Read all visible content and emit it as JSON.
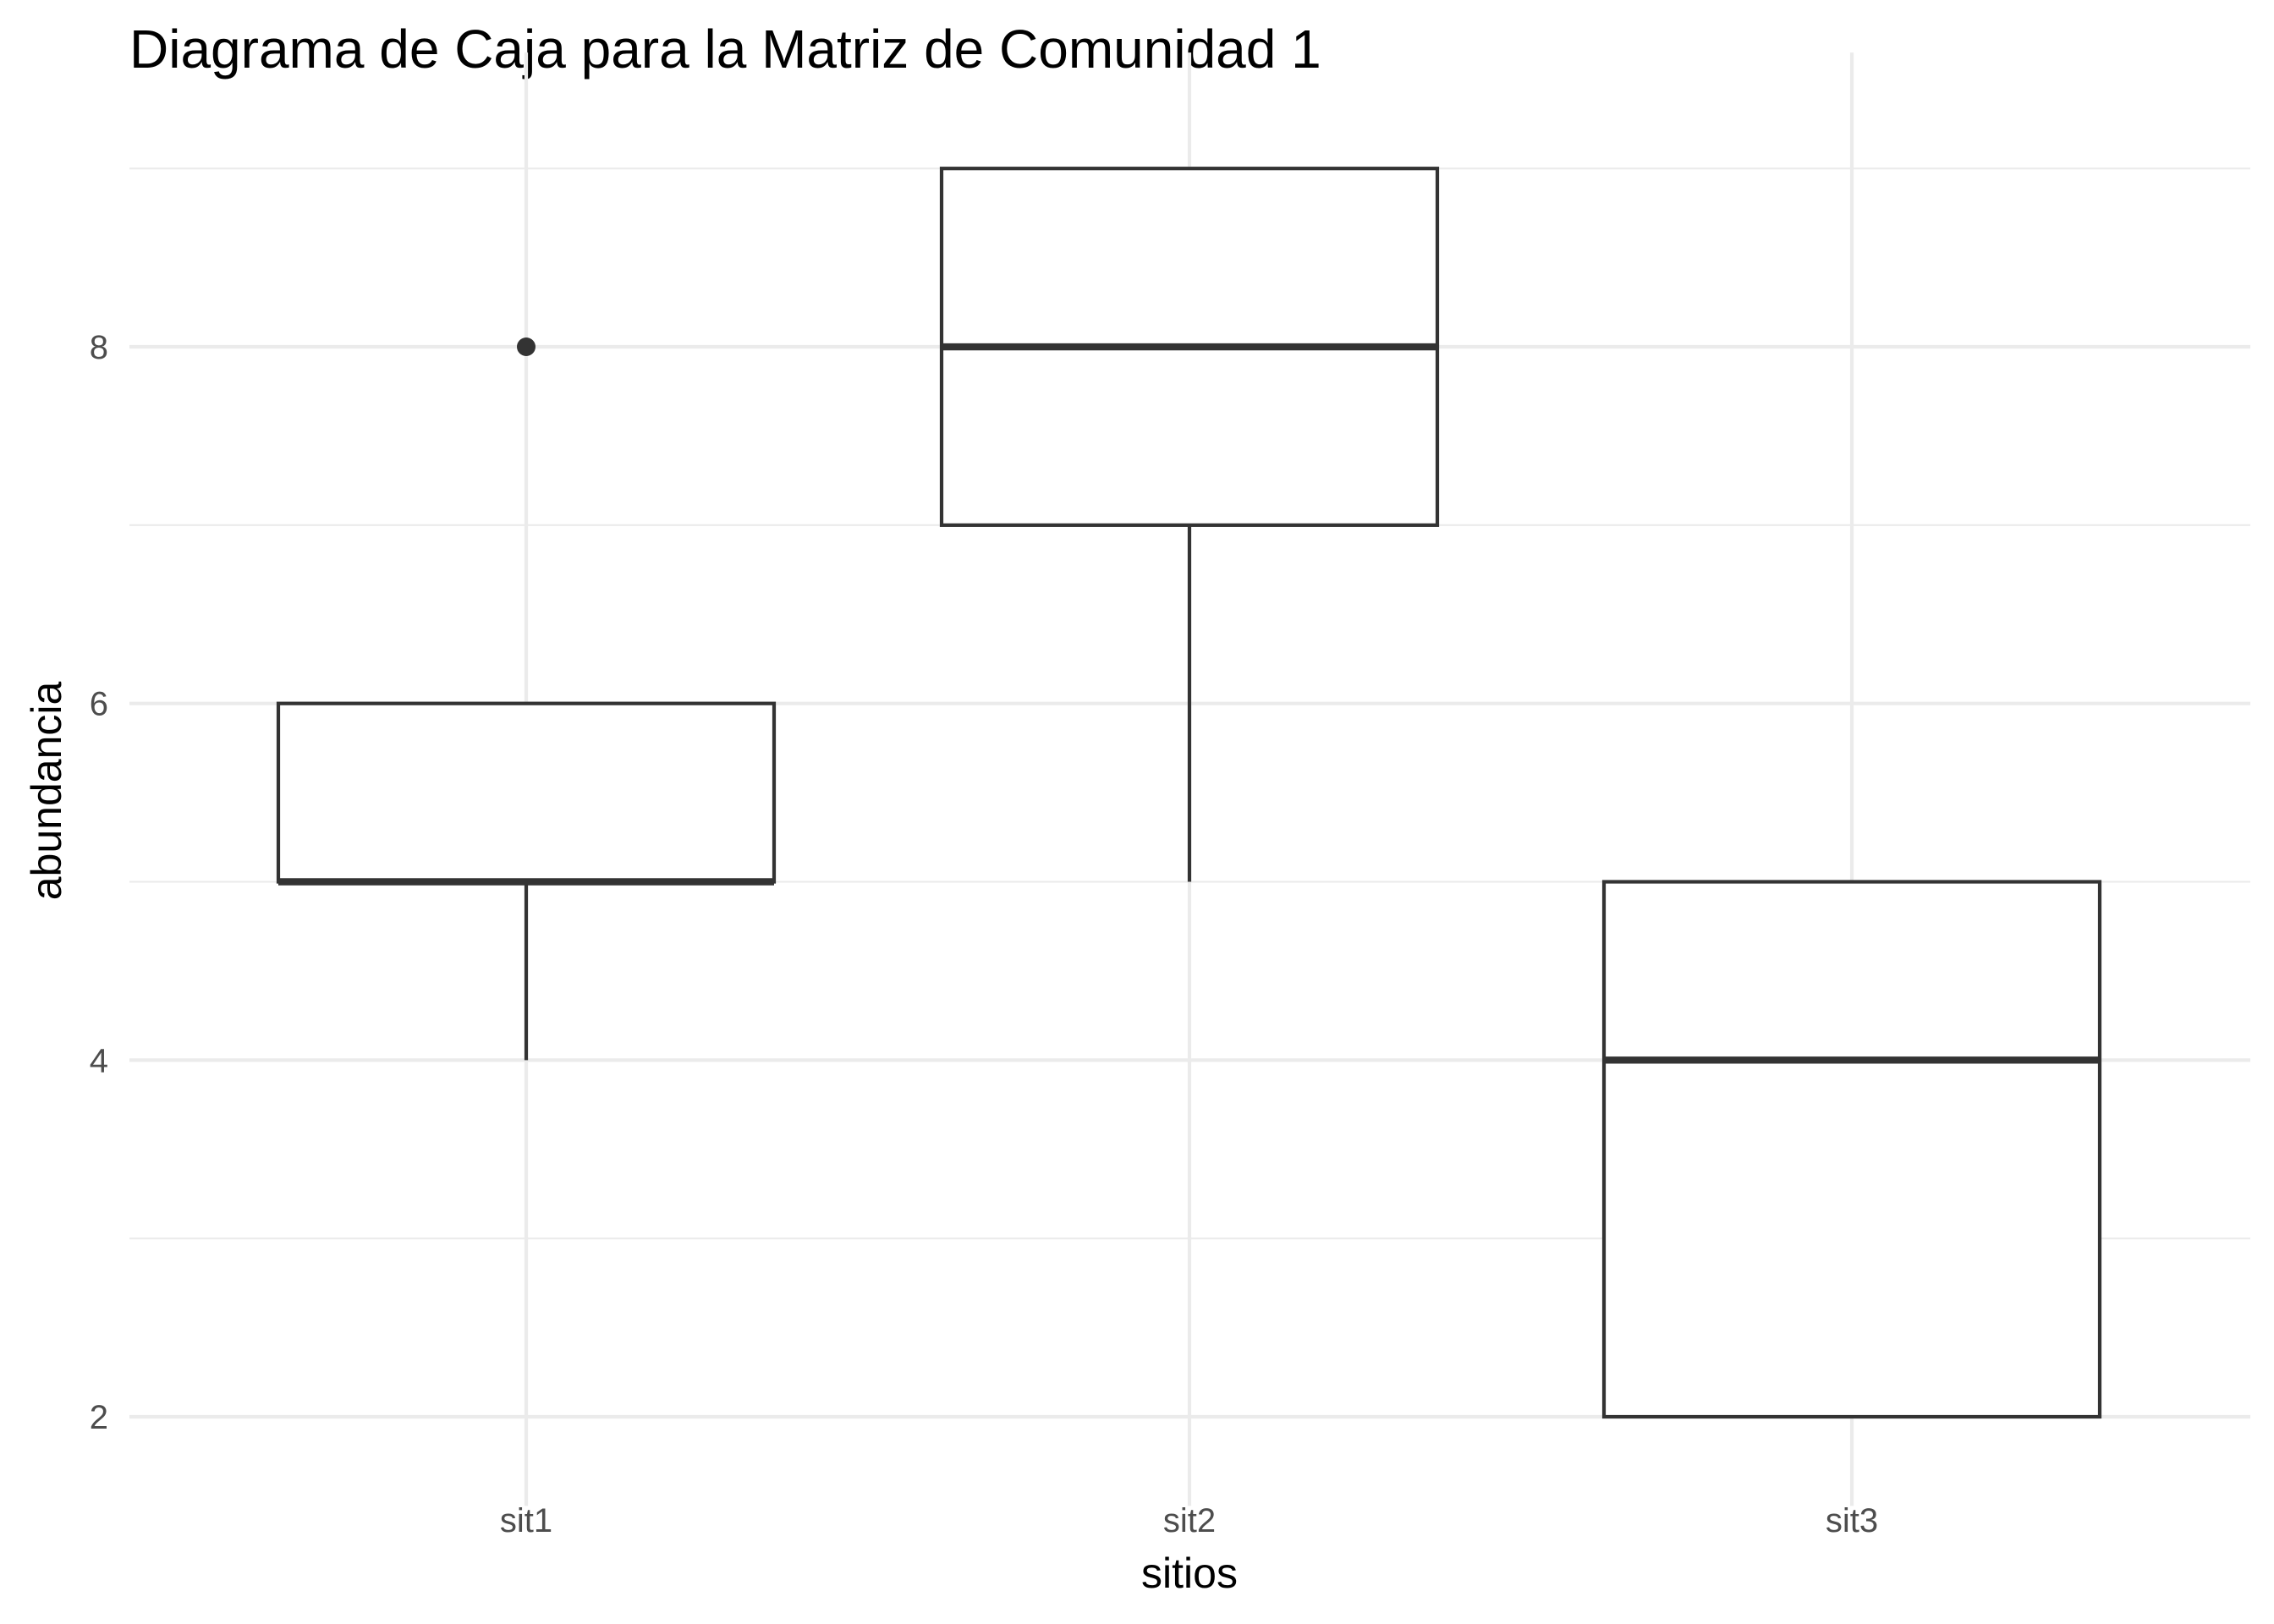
{
  "chart_data": {
    "type": "box",
    "title": "Diagrama de Caja para la Matriz de Comunidad 1",
    "xlabel": "sitios",
    "ylabel": "abundancia",
    "categories": [
      "sit1",
      "sit2",
      "sit3"
    ],
    "y_ticks": [
      2,
      4,
      6,
      8
    ],
    "y_minor_ticks": [
      3,
      5,
      7,
      9
    ],
    "ylim": [
      1.5,
      9.65
    ],
    "grid": true,
    "legend": "none",
    "boxes": [
      {
        "category": "sit1",
        "min": 4,
        "q1": 5,
        "median": 5,
        "q3": 6,
        "max": 6,
        "outliers": [
          8
        ]
      },
      {
        "category": "sit2",
        "min": 5,
        "q1": 7,
        "median": 8,
        "q3": 9,
        "max": 9,
        "outliers": []
      },
      {
        "category": "sit3",
        "min": 2,
        "q1": 2,
        "median": 4,
        "q3": 5,
        "max": 5,
        "outliers": []
      }
    ],
    "colors": {
      "box_line": "#333333",
      "box_fill": "#ffffff",
      "grid": "#ebebeb",
      "tick_text": "#4d4d4d"
    }
  }
}
